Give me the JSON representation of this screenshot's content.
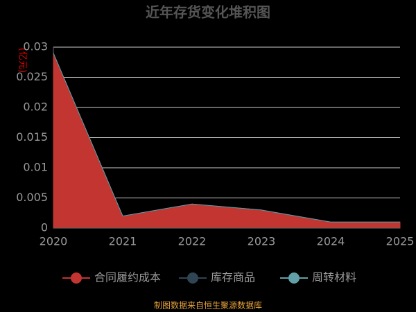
{
  "chart_data": {
    "type": "stacked-area",
    "title": "近年存货变化堆积图",
    "y_label": "(亿元)",
    "categories": [
      "2020",
      "2021",
      "2022",
      "2023",
      "2024",
      "2025"
    ],
    "series": [
      {
        "name": "合同履约成本",
        "color": "#c23531",
        "values": [
          0.029,
          0.002,
          0.004,
          0.003,
          0.001,
          0.001
        ]
      },
      {
        "name": "库存商品",
        "color": "#2f4554",
        "values": [
          0,
          0,
          0,
          0,
          0,
          0
        ]
      },
      {
        "name": "周转材料",
        "color": "#61a0a8",
        "values": [
          0,
          0,
          0,
          0,
          0,
          0
        ]
      }
    ],
    "ylim": [
      0,
      0.03
    ],
    "yticks": [
      0,
      0.005,
      0.01,
      0.015,
      0.02,
      0.025,
      0.03
    ],
    "grid": true,
    "source": "制图数据来自恒生聚源数据库"
  }
}
